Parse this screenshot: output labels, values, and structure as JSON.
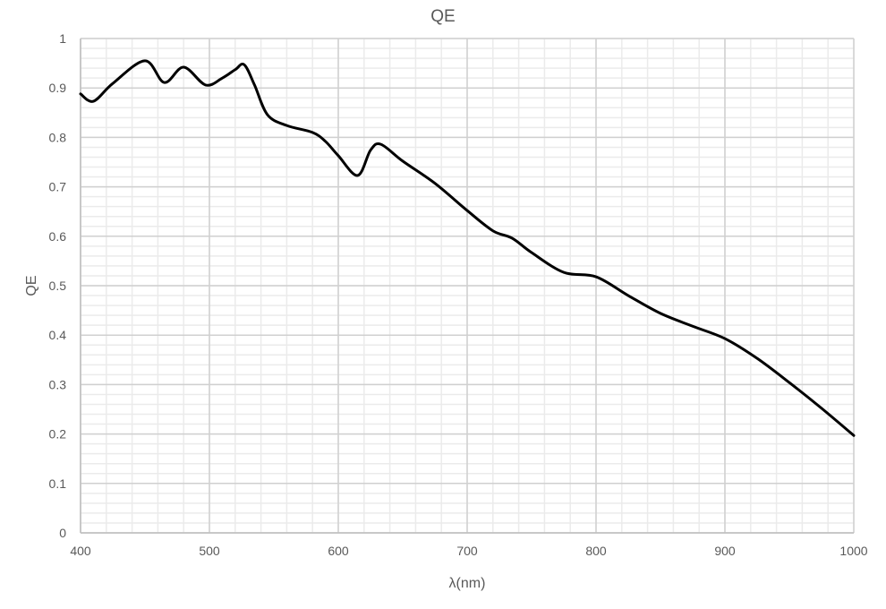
{
  "chart_data": {
    "type": "line",
    "title": "QE",
    "xlabel": "λ(nm)",
    "ylabel": "QE",
    "xlim": [
      400,
      1000
    ],
    "ylim": [
      0,
      1
    ],
    "x_ticks": [
      400,
      500,
      600,
      700,
      800,
      900,
      1000
    ],
    "y_ticks": [
      0,
      0.1,
      0.2,
      0.3,
      0.4,
      0.5,
      0.6,
      0.7,
      0.8,
      0.9,
      1
    ],
    "x_tick_labels": [
      "400",
      "500",
      "600",
      "700",
      "800",
      "900",
      "1000"
    ],
    "y_tick_labels": [
      "0",
      "0.1",
      "0.2",
      "0.3",
      "0.4",
      "0.5",
      "0.6",
      "0.7",
      "0.8",
      "0.9",
      "1"
    ],
    "x_minor_step": 20,
    "y_minor_step": 0.02,
    "grid": true,
    "legend": "none",
    "line_color": "#000000",
    "series": [
      {
        "x": [
          400,
          410,
          425,
          450,
          465,
          480,
          497,
          510,
          520,
          527,
          535,
          545,
          560,
          580,
          590,
          600,
          615,
          625,
          633,
          650,
          675,
          700,
          720,
          735,
          750,
          775,
          800,
          825,
          850,
          875,
          900,
          925,
          950,
          975,
          1000
        ],
        "y": [
          0.888,
          0.873,
          0.909,
          0.955,
          0.911,
          0.942,
          0.906,
          0.92,
          0.937,
          0.947,
          0.906,
          0.846,
          0.824,
          0.81,
          0.792,
          0.763,
          0.723,
          0.774,
          0.786,
          0.752,
          0.707,
          0.652,
          0.611,
          0.596,
          0.567,
          0.527,
          0.518,
          0.48,
          0.444,
          0.418,
          0.393,
          0.353,
          0.304,
          0.252,
          0.197
        ]
      }
    ]
  }
}
